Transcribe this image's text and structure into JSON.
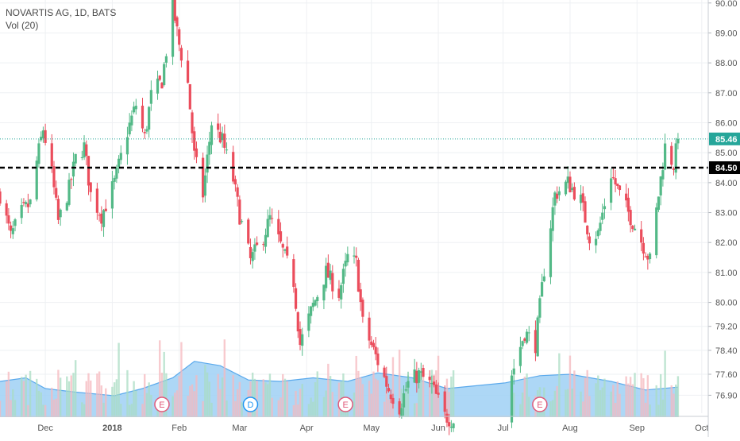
{
  "legend": {
    "symbol_title": "NOVARTIS AG, 1D, BATS",
    "volume_title": "Vol (20)"
  },
  "colors": {
    "up": "#53b987",
    "down": "#eb4d5c",
    "vol_up": "#a9dcc3",
    "vol_down": "#f5b8be",
    "vol_ma_fill": "#9fd0f5",
    "vol_ma_line": "#5aa9ec",
    "last_price": "#26a69a",
    "level_line": "#000000",
    "grid": "#eef0f3",
    "marker": "#e05a7a",
    "marker_div": "#2196f3"
  },
  "chart_data": {
    "type": "candlestick",
    "title": "NOVARTIS AG, 1D, BATS",
    "volume_indicator": "Vol (20)",
    "y_axis": {
      "ticks": [
        "90.00",
        "89.00",
        "88.00",
        "87.00",
        "86.00",
        "85.00",
        "84.00",
        "83.00",
        "82.00",
        "81.00",
        "80.00",
        "79.20",
        "78.40",
        "77.60",
        "76.90"
      ],
      "range": [
        76.3,
        90.1
      ]
    },
    "x_axis": {
      "labels": [
        {
          "text": "Dec",
          "date": "2017-12-01"
        },
        {
          "text": "2018",
          "date": "2018-01-01"
        },
        {
          "text": "Feb",
          "date": "2018-02-01"
        },
        {
          "text": "Mar",
          "date": "2018-03-01"
        },
        {
          "text": "Apr",
          "date": "2018-04-01"
        },
        {
          "text": "May",
          "date": "2018-05-01"
        },
        {
          "text": "Jun",
          "date": "2018-06-01"
        },
        {
          "text": "Jul",
          "date": "2018-07-01"
        },
        {
          "text": "Aug",
          "date": "2018-08-01"
        },
        {
          "text": "Sep",
          "date": "2018-09-01"
        },
        {
          "text": "Oct",
          "date": "2018-10-01"
        }
      ],
      "range": [
        "2017-11-10",
        "2018-10-04"
      ]
    },
    "last_price": {
      "value": 85.46,
      "label": "85.46"
    },
    "horizontal_level": {
      "value": 84.5,
      "label": "84.50",
      "style": "dashed"
    },
    "price_path": [
      [
        "2017-11-10",
        83.6
      ],
      [
        "2017-11-15",
        82.2
      ],
      [
        "2017-11-20",
        83.0
      ],
      [
        "2017-11-24",
        83.3
      ],
      [
        "2017-11-27",
        84.7
      ],
      [
        "2017-11-30",
        85.8
      ],
      [
        "2017-12-04",
        84.3
      ],
      [
        "2017-12-07",
        82.7
      ],
      [
        "2017-12-12",
        83.8
      ],
      [
        "2017-12-15",
        84.8
      ],
      [
        "2017-12-19",
        85.2
      ],
      [
        "2017-12-22",
        83.6
      ],
      [
        "2017-12-27",
        82.9
      ],
      [
        "2018-01-02",
        84.0
      ],
      [
        "2018-01-08",
        85.7
      ],
      [
        "2018-01-12",
        86.6
      ],
      [
        "2018-01-16",
        85.5
      ],
      [
        "2018-01-19",
        86.9
      ],
      [
        "2018-01-24",
        87.4
      ],
      [
        "2018-01-29",
        89.9
      ],
      [
        "2018-02-01",
        88.6
      ],
      [
        "2018-02-05",
        87.3
      ],
      [
        "2018-02-08",
        84.9
      ],
      [
        "2018-02-12",
        83.6
      ],
      [
        "2018-02-16",
        86.0
      ],
      [
        "2018-02-21",
        85.4
      ],
      [
        "2018-02-26",
        84.1
      ],
      [
        "2018-03-01",
        82.9
      ],
      [
        "2018-03-06",
        81.4
      ],
      [
        "2018-03-12",
        82.2
      ],
      [
        "2018-03-15",
        82.8
      ],
      [
        "2018-03-20",
        81.9
      ],
      [
        "2018-03-26",
        80.7
      ],
      [
        "2018-03-29",
        78.6
      ],
      [
        "2018-04-04",
        79.9
      ],
      [
        "2018-04-10",
        81.0
      ],
      [
        "2018-04-16",
        80.3
      ],
      [
        "2018-04-20",
        81.5
      ],
      [
        "2018-04-24",
        81.3
      ],
      [
        "2018-04-27",
        79.3
      ],
      [
        "2018-05-03",
        78.2
      ],
      [
        "2018-05-09",
        77.1
      ],
      [
        "2018-05-14",
        76.5
      ],
      [
        "2018-05-18",
        77.3
      ],
      [
        "2018-05-23",
        77.6
      ],
      [
        "2018-05-29",
        77.2
      ],
      [
        "2018-06-04",
        76.2
      ],
      [
        "2018-06-10",
        76.0
      ],
      [
        "2018-07-05",
        77.6
      ],
      [
        "2018-07-11",
        79.0
      ],
      [
        "2018-07-16",
        78.6
      ],
      [
        "2018-07-20",
        81.1
      ],
      [
        "2018-07-25",
        83.6
      ],
      [
        "2018-07-31",
        84.0
      ],
      [
        "2018-08-06",
        83.4
      ],
      [
        "2018-08-10",
        82.2
      ],
      [
        "2018-08-14",
        82.3
      ],
      [
        "2018-08-20",
        84.3
      ],
      [
        "2018-08-24",
        83.6
      ],
      [
        "2018-08-30",
        82.7
      ],
      [
        "2018-09-04",
        81.9
      ],
      [
        "2018-09-07",
        81.4
      ],
      [
        "2018-09-11",
        83.6
      ],
      [
        "2018-09-14",
        85.2
      ],
      [
        "2018-09-18",
        84.6
      ],
      [
        "2018-09-20",
        85.46
      ]
    ],
    "volume_ma_path": [
      [
        "2017-11-10",
        0.5
      ],
      [
        "2017-11-22",
        0.55
      ],
      [
        "2017-12-01",
        0.4
      ],
      [
        "2017-12-15",
        0.35
      ],
      [
        "2018-01-02",
        0.3
      ],
      [
        "2018-01-15",
        0.4
      ],
      [
        "2018-01-29",
        0.55
      ],
      [
        "2018-02-08",
        0.78
      ],
      [
        "2018-02-20",
        0.72
      ],
      [
        "2018-03-05",
        0.52
      ],
      [
        "2018-03-20",
        0.5
      ],
      [
        "2018-04-04",
        0.55
      ],
      [
        "2018-04-20",
        0.5
      ],
      [
        "2018-05-04",
        0.62
      ],
      [
        "2018-05-20",
        0.55
      ],
      [
        "2018-06-05",
        0.4
      ],
      [
        "2018-07-02",
        0.48
      ],
      [
        "2018-07-18",
        0.58
      ],
      [
        "2018-08-01",
        0.6
      ],
      [
        "2018-08-20",
        0.5
      ],
      [
        "2018-09-05",
        0.38
      ],
      [
        "2018-09-20",
        0.42
      ]
    ],
    "events": [
      {
        "label": "E",
        "date": "2018-01-24",
        "kind": "earnings"
      },
      {
        "label": "D",
        "date": "2018-03-06",
        "kind": "dividend"
      },
      {
        "label": "E",
        "date": "2018-04-19",
        "kind": "earnings"
      },
      {
        "label": "E",
        "date": "2018-07-18",
        "kind": "earnings"
      }
    ]
  }
}
